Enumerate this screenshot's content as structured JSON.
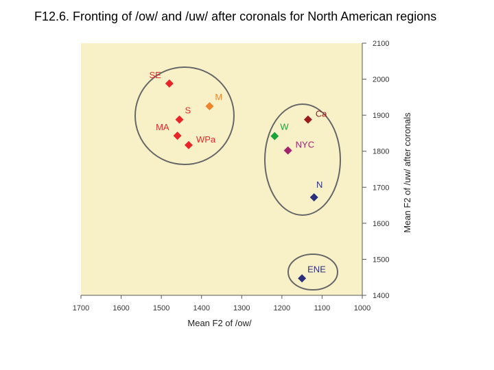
{
  "title": "F12.6. Fronting of /ow/ and /uw/ after coronals for North American regions",
  "chart_data": {
    "type": "scatter",
    "xlabel": "Mean F2 of /ow/",
    "ylabel": "Mean F2 of /uw/ after coronals",
    "x_reversed": true,
    "xlim": [
      1000,
      1700
    ],
    "ylim": [
      1400,
      2100
    ],
    "xticks": [
      "1700",
      "1600",
      "1500",
      "1400",
      "1300",
      "1200",
      "1100",
      "1000"
    ],
    "yticks": [
      "1400",
      "1500",
      "1600",
      "1700",
      "1800",
      "1900",
      "2000",
      "2100"
    ],
    "plot_background": "#f8f1c8",
    "points": [
      {
        "label": "SE",
        "x": 1480,
        "y": 1988,
        "color": "#e8262a",
        "label_pos": "left"
      },
      {
        "label": "S",
        "x": 1455,
        "y": 1888,
        "color": "#e8262a",
        "label_pos": "upright"
      },
      {
        "label": "M",
        "x": 1380,
        "y": 1925,
        "color": "#f0842c",
        "label_pos": "upright"
      },
      {
        "label": "MA",
        "x": 1460,
        "y": 1843,
        "color": "#e8262a",
        "label_pos": "left"
      },
      {
        "label": "WPa",
        "x": 1432,
        "y": 1817,
        "color": "#e8262a",
        "label_pos": "right"
      },
      {
        "label": "W",
        "x": 1218,
        "y": 1842,
        "color": "#1aa33a",
        "label_pos": "upright"
      },
      {
        "label": "Ca",
        "x": 1135,
        "y": 1888,
        "color": "#9b1b1f",
        "label_pos": "right"
      },
      {
        "label": "NYC",
        "x": 1185,
        "y": 1802,
        "color": "#a3246c",
        "label_pos": "right"
      },
      {
        "label": "N",
        "x": 1120,
        "y": 1672,
        "color": "#2b2f7c",
        "label_pos": "above"
      },
      {
        "label": "ENE",
        "x": 1150,
        "y": 1447,
        "color": "#2b2f7c",
        "label_pos": "upright"
      }
    ],
    "groups": [
      {
        "name": "south-midland-cluster",
        "members": [
          "SE",
          "S",
          "M",
          "MA",
          "WPa"
        ]
      },
      {
        "name": "west-north-cluster",
        "members": [
          "W",
          "Ca",
          "NYC",
          "N"
        ]
      },
      {
        "name": "eastern-new-england-cluster",
        "members": [
          "ENE"
        ]
      }
    ]
  }
}
